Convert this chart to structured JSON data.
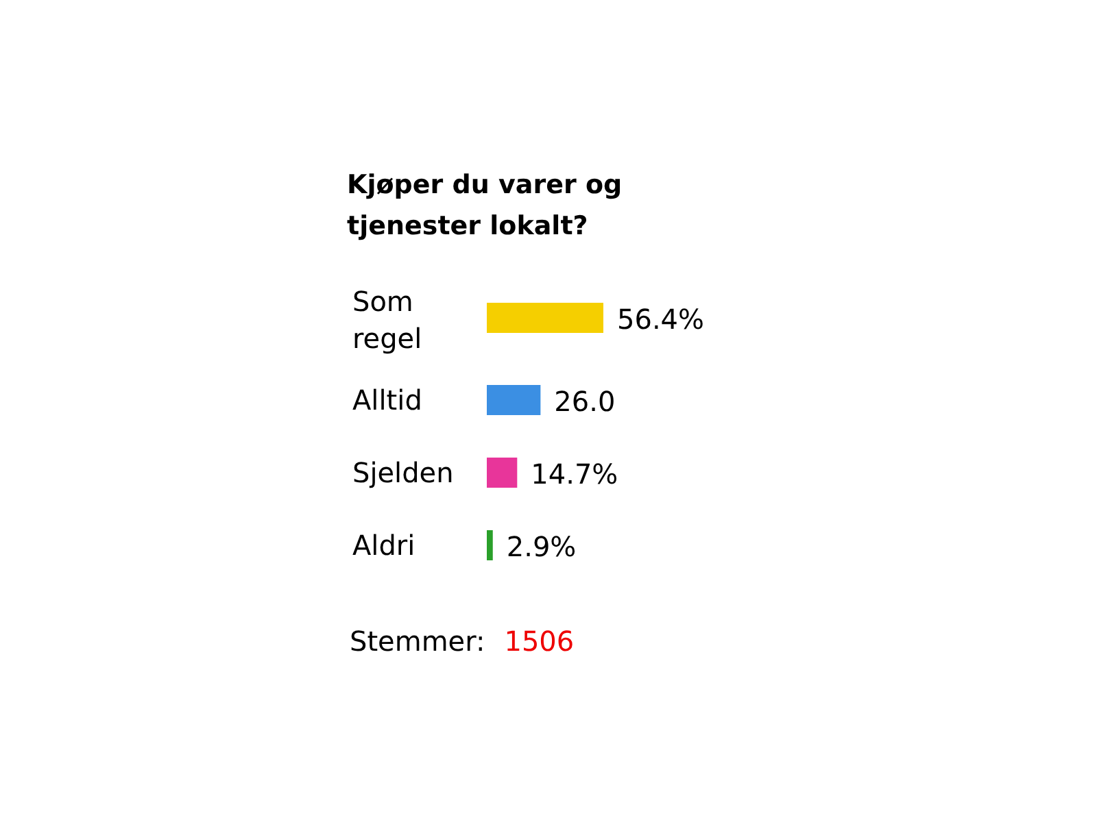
{
  "chart_data": {
    "type": "bar",
    "orientation": "horizontal",
    "title": "Kjøper du varer og tjenester lokalt?",
    "categories": [
      "Som regel",
      "Alltid",
      "Sjelden",
      "Aldri"
    ],
    "values": [
      56.4,
      26.0,
      14.7,
      2.9
    ],
    "colors": [
      "#f5cf00",
      "#3b8fe3",
      "#e8359a",
      "#2aa02a"
    ],
    "value_labels": [
      "56.4%",
      "26.0",
      "14.7%",
      "2.9%"
    ],
    "annotations": [
      "Stemmer:",
      "1506"
    ]
  }
}
